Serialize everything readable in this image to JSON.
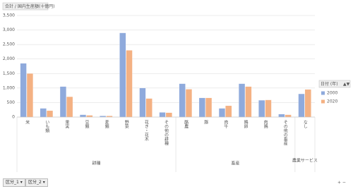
{
  "chart_data": {
    "type": "bar",
    "title": "合計 / 国内生産額(十億円)",
    "groups": [
      {
        "name": "耕種",
        "categories": [
          "米",
          "いも類",
          "果実",
          "豆類",
          "麦類",
          "野菜",
          "花き・花木",
          "その他の耕種"
        ]
      },
      {
        "name": "畜産",
        "categories": [
          "酪農",
          "豚",
          "肉牛",
          "鶏卵",
          "肉鶏",
          "その他の畜産"
        ]
      },
      {
        "name": "農業サービス",
        "categories": [
          "なし"
        ]
      }
    ],
    "series": [
      {
        "name": "2000",
        "color": "#8faadc",
        "values": [
          1850,
          300,
          1050,
          80,
          40,
          2900,
          1000,
          160,
          1150,
          660,
          300,
          1150,
          580,
          100,
          800
        ]
      },
      {
        "name": "2020",
        "color": "#f4b183",
        "values": [
          1500,
          220,
          700,
          60,
          40,
          2300,
          640,
          150,
          960,
          660,
          390,
          1050,
          590,
          80,
          950
        ]
      }
    ],
    "legend_title": "日付 (年)",
    "ylim": [
      0,
      3500
    ],
    "yticks": [
      0,
      500,
      {
        "value": 1000,
        "label": "1,000"
      },
      {
        "value": 1500,
        "label": "1,500"
      },
      {
        "value": 2000,
        "label": "2,000"
      },
      {
        "value": 2500,
        "label": "2,500"
      },
      {
        "value": 3000,
        "label": "3,000"
      },
      {
        "value": 3500,
        "label": "3,500"
      }
    ],
    "grid": true,
    "filters": [
      "区分_1",
      "区分_2"
    ]
  }
}
